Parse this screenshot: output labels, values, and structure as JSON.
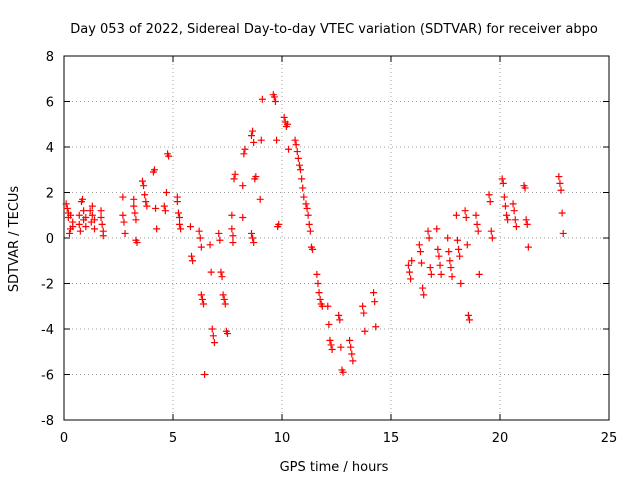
{
  "chart_data": {
    "type": "scatter",
    "title": "Day 053 of 2022, Sidereal Day-to-day VTEC variation (SDTVAR) for receiver abpo",
    "xlabel": "GPS time / hours",
    "ylabel": "SDTVAR / TECUs",
    "xlim": [
      0,
      25
    ],
    "ylim": [
      -8,
      8
    ],
    "xticks": [
      "0",
      "5",
      "10",
      "15",
      "20",
      "25"
    ],
    "yticks": [
      "-8",
      "-6",
      "-4",
      "-2",
      "0",
      "2",
      "4",
      "6",
      "8"
    ],
    "grid": true,
    "marker": "plus",
    "color": "#ff0000",
    "series": [
      {
        "name": "SDTVAR",
        "points": [
          [
            0.1,
            1.5
          ],
          [
            0.15,
            1.3
          ],
          [
            0.2,
            1.1
          ],
          [
            0.2,
            0.9
          ],
          [
            0.25,
            0.2
          ],
          [
            0.3,
            0.4
          ],
          [
            0.3,
            1.0
          ],
          [
            0.4,
            0.7
          ],
          [
            0.4,
            0.5
          ],
          [
            0.7,
            1.0
          ],
          [
            0.7,
            0.6
          ],
          [
            0.75,
            0.3
          ],
          [
            0.8,
            1.6
          ],
          [
            0.85,
            1.7
          ],
          [
            0.9,
            1.2
          ],
          [
            0.9,
            0.8
          ],
          [
            1.0,
            0.9
          ],
          [
            1.0,
            0.5
          ],
          [
            1.2,
            1.2
          ],
          [
            1.25,
            0.7
          ],
          [
            1.3,
            1.4
          ],
          [
            1.3,
            1.0
          ],
          [
            1.4,
            0.8
          ],
          [
            1.4,
            0.4
          ],
          [
            1.7,
            1.2
          ],
          [
            1.7,
            0.9
          ],
          [
            1.75,
            0.6
          ],
          [
            1.8,
            0.3
          ],
          [
            1.8,
            0.1
          ],
          [
            2.7,
            1.8
          ],
          [
            2.7,
            1.0
          ],
          [
            2.75,
            0.7
          ],
          [
            2.8,
            0.2
          ],
          [
            3.2,
            1.7
          ],
          [
            3.2,
            1.4
          ],
          [
            3.25,
            1.1
          ],
          [
            3.3,
            0.8
          ],
          [
            3.3,
            -0.1
          ],
          [
            3.35,
            -0.2
          ],
          [
            3.6,
            2.5
          ],
          [
            3.65,
            2.3
          ],
          [
            3.7,
            1.9
          ],
          [
            3.75,
            1.6
          ],
          [
            3.8,
            1.4
          ],
          [
            4.1,
            2.9
          ],
          [
            4.15,
            3.0
          ],
          [
            4.2,
            1.3
          ],
          [
            4.25,
            0.4
          ],
          [
            4.6,
            1.4
          ],
          [
            4.65,
            1.2
          ],
          [
            4.7,
            2.0
          ],
          [
            4.75,
            3.7
          ],
          [
            4.8,
            3.6
          ],
          [
            5.2,
            1.8
          ],
          [
            5.2,
            1.6
          ],
          [
            5.25,
            1.1
          ],
          [
            5.3,
            0.9
          ],
          [
            5.3,
            0.6
          ],
          [
            5.35,
            0.4
          ],
          [
            5.8,
            0.5
          ],
          [
            5.85,
            -0.8
          ],
          [
            5.9,
            -1.0
          ],
          [
            6.2,
            0.3
          ],
          [
            6.25,
            0.0
          ],
          [
            6.3,
            -0.4
          ],
          [
            6.3,
            -2.5
          ],
          [
            6.35,
            -2.7
          ],
          [
            6.4,
            -2.9
          ],
          [
            6.45,
            -6.0
          ],
          [
            6.7,
            -0.3
          ],
          [
            6.75,
            -1.5
          ],
          [
            6.8,
            -4.0
          ],
          [
            6.85,
            -4.3
          ],
          [
            6.9,
            -4.6
          ],
          [
            7.1,
            0.2
          ],
          [
            7.15,
            -0.1
          ],
          [
            7.2,
            -1.5
          ],
          [
            7.25,
            -1.7
          ],
          [
            7.3,
            -2.5
          ],
          [
            7.35,
            -2.7
          ],
          [
            7.4,
            -2.9
          ],
          [
            7.45,
            -4.1
          ],
          [
            7.5,
            -4.2
          ],
          [
            7.7,
            1.0
          ],
          [
            7.7,
            0.4
          ],
          [
            7.75,
            0.1
          ],
          [
            7.75,
            -0.2
          ],
          [
            7.8,
            2.6
          ],
          [
            7.85,
            2.8
          ],
          [
            8.2,
            0.9
          ],
          [
            8.2,
            2.3
          ],
          [
            8.25,
            3.7
          ],
          [
            8.3,
            3.9
          ],
          [
            8.6,
            4.5
          ],
          [
            8.65,
            4.7
          ],
          [
            8.7,
            4.2
          ],
          [
            8.75,
            2.6
          ],
          [
            8.8,
            2.7
          ],
          [
            8.6,
            0.2
          ],
          [
            8.65,
            0.0
          ],
          [
            8.7,
            -0.2
          ],
          [
            9.0,
            1.7
          ],
          [
            9.05,
            4.3
          ],
          [
            9.1,
            6.1
          ],
          [
            9.6,
            6.3
          ],
          [
            9.65,
            6.2
          ],
          [
            9.7,
            6.0
          ],
          [
            9.75,
            4.3
          ],
          [
            9.8,
            0.5
          ],
          [
            9.85,
            0.6
          ],
          [
            10.1,
            5.3
          ],
          [
            10.15,
            5.1
          ],
          [
            10.2,
            4.9
          ],
          [
            10.25,
            5.0
          ],
          [
            10.3,
            3.9
          ],
          [
            10.6,
            4.3
          ],
          [
            10.65,
            4.1
          ],
          [
            10.7,
            3.8
          ],
          [
            10.75,
            3.5
          ],
          [
            10.8,
            3.2
          ],
          [
            10.85,
            3.0
          ],
          [
            10.9,
            2.6
          ],
          [
            10.95,
            2.2
          ],
          [
            11.0,
            1.8
          ],
          [
            11.1,
            1.5
          ],
          [
            11.15,
            1.3
          ],
          [
            11.2,
            1.0
          ],
          [
            11.25,
            0.6
          ],
          [
            11.3,
            0.3
          ],
          [
            11.35,
            -0.4
          ],
          [
            11.4,
            -0.5
          ],
          [
            11.6,
            -1.6
          ],
          [
            11.65,
            -2.0
          ],
          [
            11.7,
            -2.4
          ],
          [
            11.75,
            -2.7
          ],
          [
            11.8,
            -2.9
          ],
          [
            11.85,
            -3.0
          ],
          [
            12.1,
            -3.0
          ],
          [
            12.15,
            -3.8
          ],
          [
            12.2,
            -4.5
          ],
          [
            12.25,
            -4.7
          ],
          [
            12.3,
            -4.9
          ],
          [
            12.6,
            -3.4
          ],
          [
            12.65,
            -3.6
          ],
          [
            12.7,
            -4.8
          ],
          [
            12.75,
            -5.8
          ],
          [
            12.8,
            -5.9
          ],
          [
            13.1,
            -4.5
          ],
          [
            13.15,
            -4.8
          ],
          [
            13.2,
            -5.1
          ],
          [
            13.25,
            -5.4
          ],
          [
            13.7,
            -3.0
          ],
          [
            13.75,
            -3.3
          ],
          [
            13.8,
            -4.1
          ],
          [
            14.2,
            -2.4
          ],
          [
            14.25,
            -2.8
          ],
          [
            14.3,
            -3.9
          ],
          [
            15.8,
            -1.2
          ],
          [
            15.85,
            -1.5
          ],
          [
            15.9,
            -1.8
          ],
          [
            15.95,
            -1.0
          ],
          [
            16.3,
            -0.3
          ],
          [
            16.35,
            -0.6
          ],
          [
            16.4,
            -1.1
          ],
          [
            16.45,
            -2.2
          ],
          [
            16.5,
            -2.5
          ],
          [
            16.7,
            0.3
          ],
          [
            16.75,
            0.0
          ],
          [
            16.8,
            -1.3
          ],
          [
            16.85,
            -1.6
          ],
          [
            17.1,
            0.4
          ],
          [
            17.15,
            -0.5
          ],
          [
            17.2,
            -0.8
          ],
          [
            17.25,
            -1.2
          ],
          [
            17.3,
            -1.6
          ],
          [
            17.6,
            0.0
          ],
          [
            17.65,
            -0.6
          ],
          [
            17.7,
            -1.0
          ],
          [
            17.75,
            -1.3
          ],
          [
            17.8,
            -1.7
          ],
          [
            18.0,
            1.0
          ],
          [
            18.05,
            -0.1
          ],
          [
            18.1,
            -0.5
          ],
          [
            18.15,
            -0.8
          ],
          [
            18.2,
            -2.0
          ],
          [
            18.4,
            1.2
          ],
          [
            18.45,
            0.9
          ],
          [
            18.5,
            -0.3
          ],
          [
            18.55,
            -3.4
          ],
          [
            18.6,
            -3.6
          ],
          [
            18.9,
            1.0
          ],
          [
            18.95,
            0.6
          ],
          [
            19.0,
            0.3
          ],
          [
            19.05,
            -1.6
          ],
          [
            19.5,
            1.9
          ],
          [
            19.55,
            1.6
          ],
          [
            19.6,
            0.3
          ],
          [
            19.65,
            0.0
          ],
          [
            20.1,
            2.6
          ],
          [
            20.15,
            2.4
          ],
          [
            20.2,
            1.8
          ],
          [
            20.25,
            1.4
          ],
          [
            20.3,
            1.0
          ],
          [
            20.35,
            0.8
          ],
          [
            20.6,
            1.5
          ],
          [
            20.65,
            1.2
          ],
          [
            20.7,
            0.8
          ],
          [
            20.75,
            0.5
          ],
          [
            21.1,
            2.3
          ],
          [
            21.15,
            2.2
          ],
          [
            21.2,
            0.8
          ],
          [
            21.25,
            0.6
          ],
          [
            21.3,
            -0.4
          ],
          [
            22.7,
            2.7
          ],
          [
            22.75,
            2.4
          ],
          [
            22.8,
            2.1
          ],
          [
            22.85,
            1.1
          ],
          [
            22.9,
            0.2
          ]
        ]
      }
    ]
  }
}
